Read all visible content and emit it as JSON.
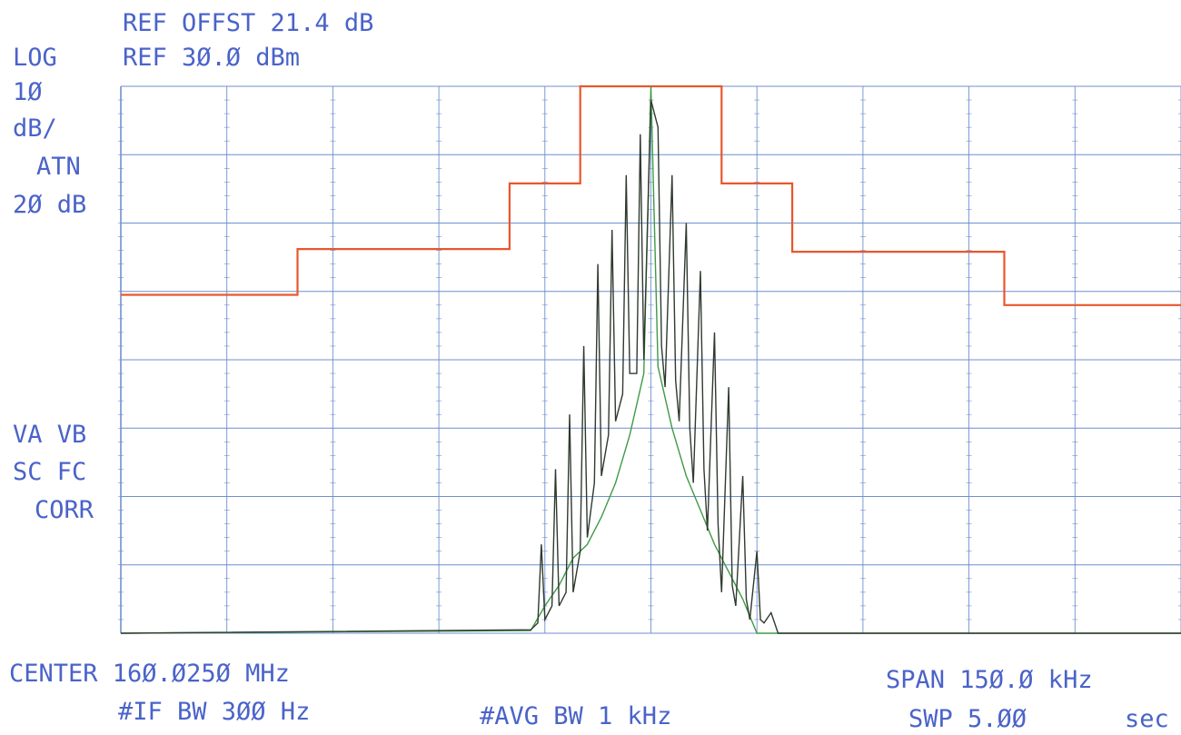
{
  "header": {
    "ref_offset": "REF OFFST 21.4 dB",
    "ref_level": "REF 3Ø.Ø dBm"
  },
  "left_labels": {
    "log": "LOG",
    "scale_value": "1Ø",
    "scale_unit": "dB/",
    "atn": "ATN",
    "atn_value": "2Ø dB",
    "va_vb": "VA VB",
    "sc_fc": "SC FC",
    "corr": "CORR"
  },
  "footer": {
    "center": "CENTER 16Ø.Ø25Ø MHz",
    "span": "SPAN 15Ø.Ø kHz",
    "if_bw": "#IF BW 3ØØ Hz",
    "avg_bw": "#AVG BW 1 kHz",
    "sweep": "SWP 5.ØØ",
    "sweep_unit": "sec"
  },
  "colors": {
    "text": "#4a63c9",
    "grid": "#6f8fcf",
    "mask": "#e8572d",
    "trace_peak": "#2f3a2f",
    "trace_avg": "#3f9a45"
  },
  "chart_data": {
    "type": "line",
    "x_unit": "kHz offset from center",
    "xlim": [
      -75,
      75
    ],
    "y_unit": "dBm",
    "ylim": [
      -50,
      30
    ],
    "grid": true,
    "series": [
      {
        "role": "mask",
        "x": [
          -75,
          -50,
          -50,
          -20,
          -20,
          -10,
          -10,
          10,
          10,
          20,
          20,
          50,
          50,
          75
        ],
        "y": [
          -0.5,
          -0.5,
          6.2,
          6.2,
          15.8,
          15.8,
          30,
          30,
          15.8,
          15.8,
          5.8,
          5.8,
          -2,
          -2
        ]
      },
      {
        "role": "peak",
        "x": [
          -75,
          -17,
          -16,
          -15.5,
          -15,
          -14,
          -13.5,
          -13,
          -12,
          -11.5,
          -11,
          -10,
          -9.5,
          -9,
          -8,
          -7.5,
          -7,
          -6,
          -5.5,
          -5,
          -4,
          -3.5,
          -3,
          -2,
          -1.5,
          -1,
          0,
          1,
          1.5,
          2,
          3,
          3.5,
          4,
          5,
          5.5,
          6,
          7,
          7.5,
          8,
          9,
          9.5,
          10,
          11,
          11.5,
          12,
          13,
          13.5,
          14,
          15,
          15.5,
          16,
          17,
          18,
          75
        ],
        "y": [
          -50,
          -49.5,
          -48.5,
          -37,
          -48,
          -46,
          -26,
          -46,
          -44,
          -18,
          -44,
          -38,
          -8,
          -36,
          -28,
          4,
          -27,
          -21,
          9,
          -19,
          -15,
          17,
          -12,
          -12,
          23,
          -10,
          28,
          24,
          -8,
          -14,
          17,
          -13,
          -19,
          10,
          -20,
          -28,
          3,
          -26,
          -35,
          -6,
          -34,
          -44,
          -14,
          -43,
          -46,
          -27,
          -45,
          -48,
          -38,
          -48,
          -48.5,
          -47,
          -50,
          -50
        ]
      },
      {
        "role": "average",
        "x": [
          -75,
          -17,
          -15,
          -13,
          -11,
          -9,
          -7,
          -5,
          -3,
          -1,
          0,
          1,
          3,
          5,
          7,
          9,
          11,
          13,
          15,
          75
        ],
        "y": [
          -50,
          -49.6,
          -46,
          -43,
          -39,
          -37,
          -33,
          -28,
          -21,
          -12,
          30,
          -11,
          -20,
          -27,
          -32,
          -37,
          -41,
          -45,
          -50,
          -50
        ]
      }
    ]
  }
}
